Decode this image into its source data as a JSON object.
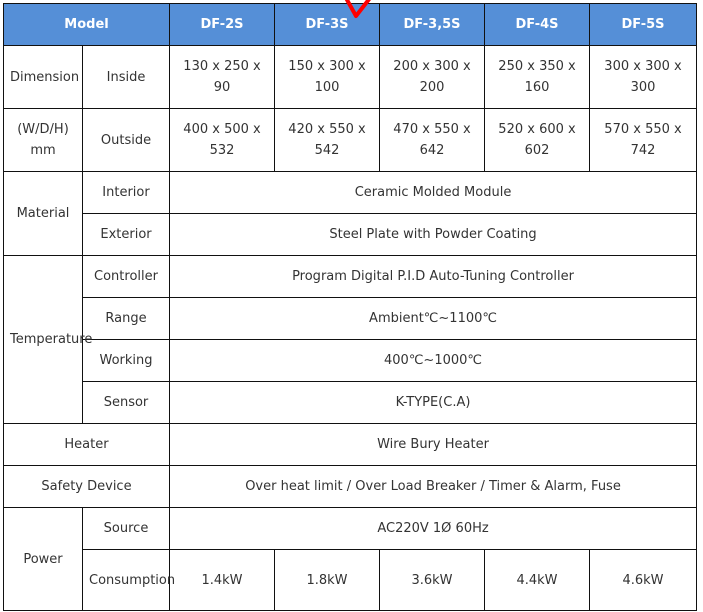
{
  "header": {
    "model_label": "Model",
    "models": [
      "DF-2S",
      "DF-3S",
      "DF-3,5S",
      "DF-4S",
      "DF-5S"
    ]
  },
  "dimension": {
    "group_label_top": "Dimension",
    "group_label_bottom": "(W/D/H) mm",
    "inside_label": "Inside",
    "inside": [
      "130 x 250 x 90",
      "150 x 300 x 100",
      "200 x 300 x 200",
      "250 x 350 x 160",
      "300 x 300 x 300"
    ],
    "outside_label": "Outside",
    "outside": [
      "400 x 500 x 532",
      "420 x 550 x 542",
      "470 x 550 x 642",
      "520 x 600 x 602",
      "570 x 550 x 742"
    ]
  },
  "material": {
    "label": "Material",
    "interior_label": "Interior",
    "interior": "Ceramic Molded Module",
    "exterior_label": "Exterior",
    "exterior": "Steel Plate with Powder Coating"
  },
  "temperature": {
    "label": "Temperature",
    "controller_label": "Controller",
    "controller": "Program Digital P.I.D Auto-Tuning Controller",
    "range_label": "Range",
    "range": "Ambient℃~1100℃",
    "working_label": "Working",
    "working": "400℃~1000℃",
    "sensor_label": "Sensor",
    "sensor": "K-TYPE(C.A)"
  },
  "heater": {
    "label": "Heater",
    "value": "Wire Bury Heater"
  },
  "safety": {
    "label": "Safety Device",
    "value": "Over heat limit / Over Load Breaker / Timer & Alarm, Fuse"
  },
  "power": {
    "label": "Power",
    "source_label": "Source",
    "source": "AC220V 1Ø 60Hz",
    "consumption_label": "Consumption",
    "consumption": [
      "1.4kW",
      "1.8kW",
      "3.6kW",
      "4.4kW",
      "4.6kW"
    ]
  },
  "colors": {
    "header_bg": "#558fd7",
    "annotation": "#ff0000"
  }
}
